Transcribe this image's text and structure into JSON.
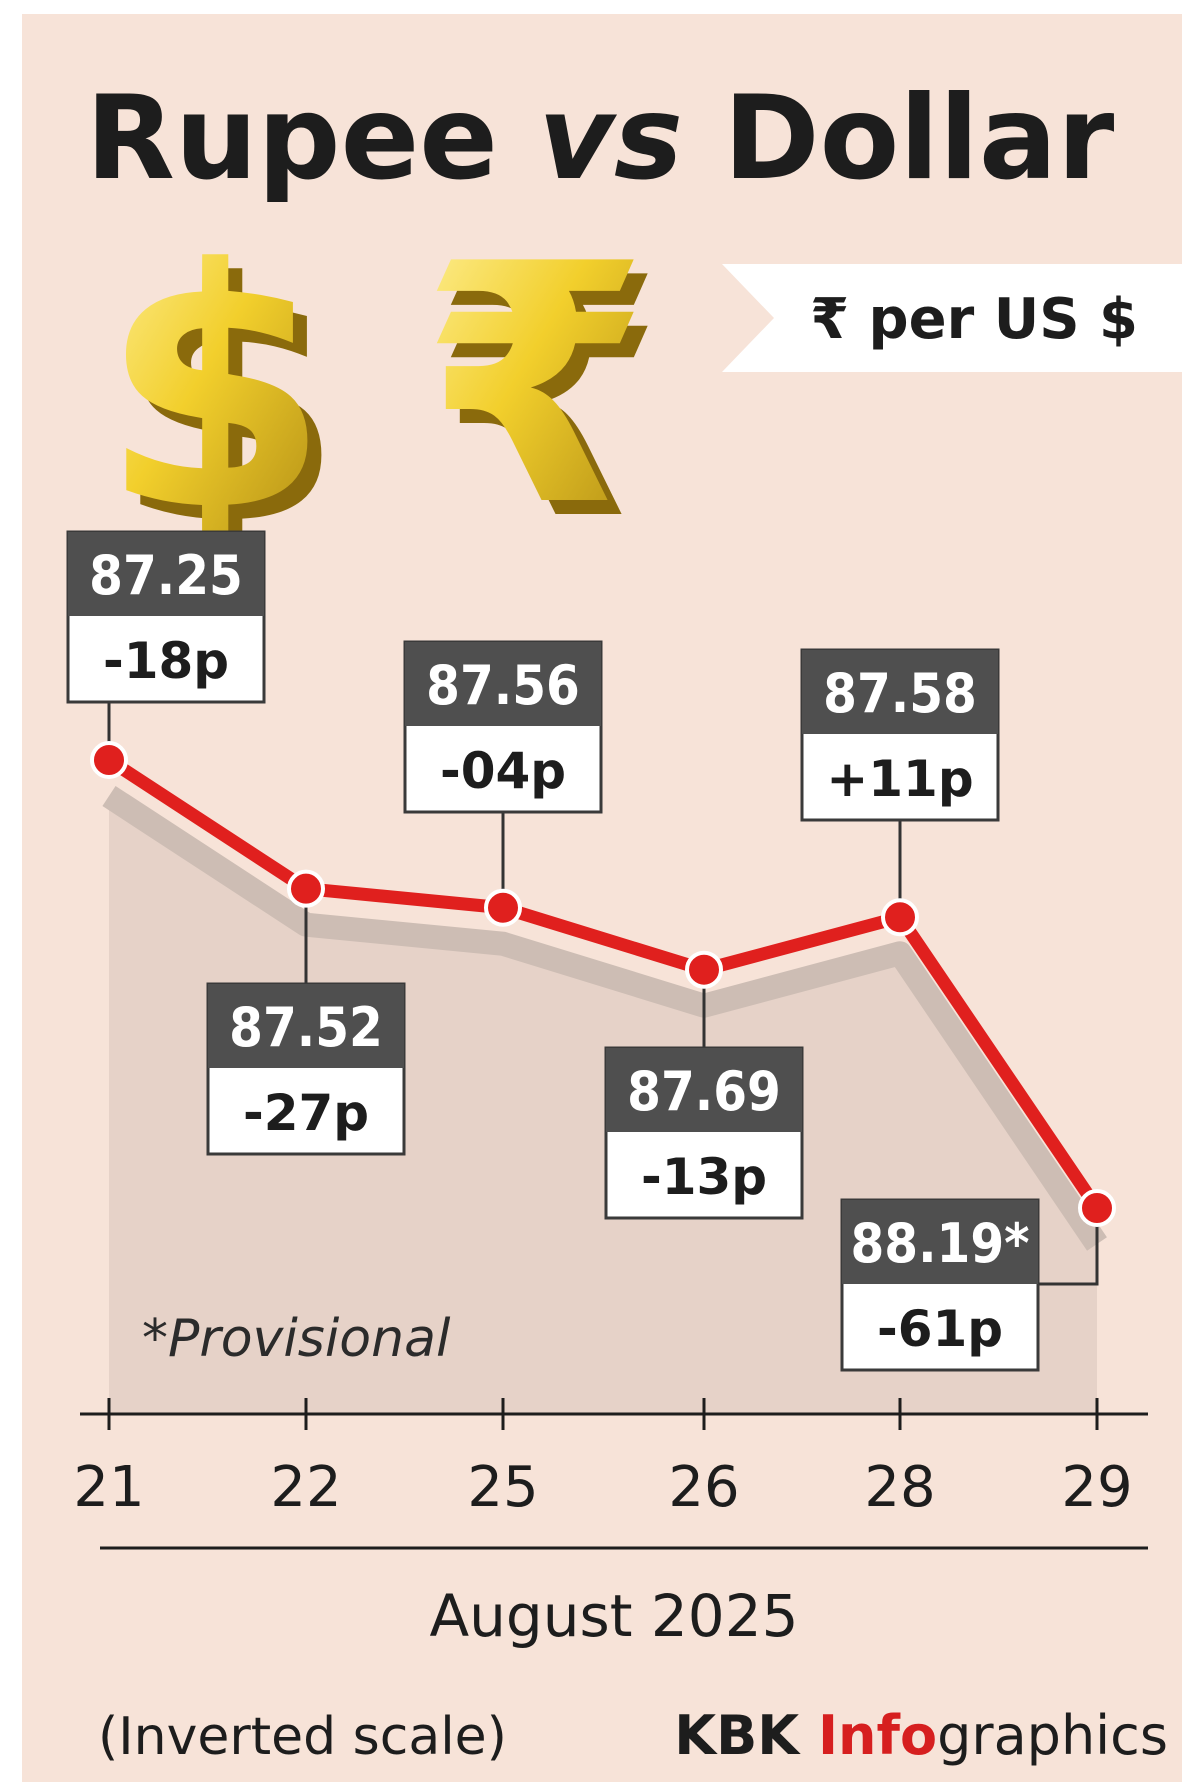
{
  "title": {
    "part1": "Rupee",
    "part2": "vs",
    "part3": "Dollar"
  },
  "unit_label": "₹ per US $",
  "icons": [
    "dollar-symbol-icon",
    "rupee-symbol-icon"
  ],
  "note": "*Provisional",
  "xlabel": "August 2025",
  "scale_note": "(Inverted scale)",
  "credit": {
    "part1": "KBK ",
    "part2": "Info",
    "part3": "graphics"
  },
  "colors": {
    "background": "#f7e3d8",
    "line": "#e0201e",
    "value_box": "#4f4f4f",
    "change_box": "#ffffff",
    "area": "#e6d2c8"
  },
  "chart_data": {
    "type": "line",
    "title": "Rupee vs Dollar",
    "xlabel": "August 2025",
    "ylabel": "₹ per US $",
    "inverted_y": true,
    "categories": [
      "21",
      "22",
      "25",
      "26",
      "28",
      "29"
    ],
    "values": [
      87.25,
      87.52,
      87.56,
      87.69,
      87.58,
      88.19
    ],
    "value_labels": [
      "87.25",
      "87.52",
      "87.56",
      "87.69",
      "87.58",
      "88.19*"
    ],
    "change_labels": [
      "-18p",
      "-27p",
      "-04p",
      "-13p",
      "+11p",
      "-61p"
    ],
    "label_side": [
      "above",
      "below",
      "above",
      "below",
      "above",
      "below"
    ],
    "ylim": [
      87.25,
      88.19
    ],
    "grid": false
  }
}
